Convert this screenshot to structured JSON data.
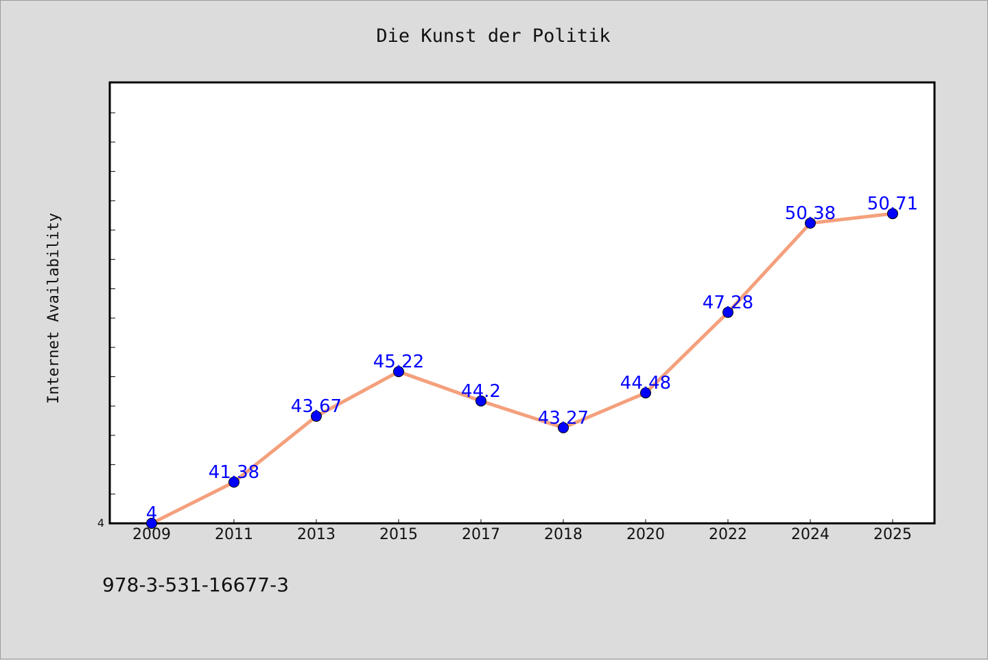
{
  "footer": {
    "code": "978-3-531-16677-3"
  },
  "colors": {
    "background": "#dcdcdc",
    "plot_background": "#ffffff",
    "line": "#f4a07c",
    "marker": "#0000ff",
    "label": "#0000ff"
  },
  "chart_data": {
    "type": "line",
    "title": "Die Kunst der Politik",
    "xlabel": "",
    "ylabel": "Internet Availability",
    "categories": [
      "2009",
      "2011",
      "2013",
      "2015",
      "2017",
      "2018",
      "2020",
      "2022",
      "2024",
      "2025"
    ],
    "series": [
      {
        "values": [
          4,
          41.38,
          43.67,
          45.22,
          44.2,
          43.27,
          44.48,
          47.28,
          50.38,
          50.71
        ]
      }
    ],
    "data_labels": [
      "4",
      "41.38",
      "43.67",
      "45.22",
      "44.2",
      "43.27",
      "44.48",
      "47.28",
      "50.38",
      "50.71"
    ],
    "y_tick_labels": [
      {
        "value": 4,
        "label": "4"
      }
    ],
    "y_axis_mapping": "piecewise",
    "grid": false,
    "legend": "none"
  }
}
